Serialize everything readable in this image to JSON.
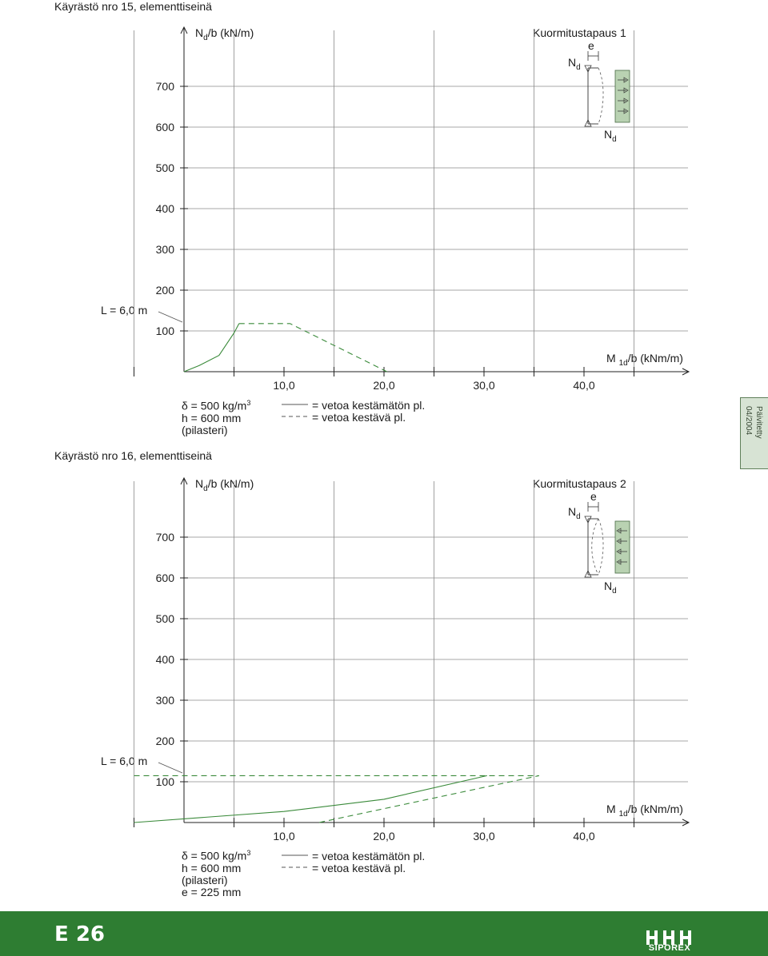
{
  "colors": {
    "curve": "#3a8a3a",
    "footer": "#2e7d32",
    "grid": "#8a8a8a",
    "panel": "#b9d2b2"
  },
  "side_tab": {
    "line1": "Päivitetty",
    "line2": "04/2004"
  },
  "footer": {
    "page_number": "E 26",
    "logo_text": "SIPOREX"
  },
  "chart_data": [
    {
      "type": "line",
      "title": "Käyrästö nro 15, elementtiseinä",
      "case_label": "Kuormitustapaus 1",
      "ylabel": {
        "main": "N",
        "sub": "d",
        "rest": "/b (kN/m)"
      },
      "xlabel": {
        "main": "M ",
        "sub": "1d",
        "rest": "/b (kNm/m)"
      },
      "yticks": [
        "100",
        "200",
        "300",
        "400",
        "500",
        "600",
        "700"
      ],
      "xticks": [
        "10,0",
        "20,0",
        "30,0",
        "40,0"
      ],
      "ylim": [
        0,
        800
      ],
      "xlim": [
        -5,
        50
      ],
      "curve_label": "L = 6,0 m",
      "diagram": {
        "e": "e",
        "nd_top": "N",
        "nd_bottom": "N",
        "sub": "d"
      },
      "params": [
        "δ = 500 kg/m",
        "h = 600 mm",
        "(pilasteri)"
      ],
      "param_sup": "3",
      "legend": [
        "= vetoa kestämätön pl.",
        "= vetoa kestävä pl."
      ],
      "series": [
        {
          "name": "vetoa kestämätön pl.",
          "style": "solid",
          "points": [
            [
              0,
              0
            ],
            [
              1.5,
              15
            ],
            [
              3.5,
              40
            ],
            [
              5,
              95
            ],
            [
              5.5,
              118
            ]
          ]
        },
        {
          "name": "vetoa kestävä pl.",
          "style": "dashed",
          "points": [
            [
              5.5,
              118
            ],
            [
              10.6,
              118
            ],
            [
              20.3,
              0
            ]
          ]
        }
      ]
    },
    {
      "type": "line",
      "title": "Käyrästö nro 16, elementtiseinä",
      "case_label": "Kuormitustapaus 2",
      "ylabel": {
        "main": "N",
        "sub": "d",
        "rest": "/b (kN/m)"
      },
      "xlabel": {
        "main": "M ",
        "sub": "1d",
        "rest": "/b (kNm/m)"
      },
      "yticks": [
        "100",
        "200",
        "300",
        "400",
        "500",
        "600",
        "700"
      ],
      "xticks": [
        "10,0",
        "20,0",
        "30,0",
        "40,0"
      ],
      "ylim": [
        0,
        800
      ],
      "xlim": [
        -5,
        50
      ],
      "curve_label": "L = 6,0 m",
      "diagram": {
        "e": "e",
        "nd_top": "N",
        "nd_bottom": "N",
        "sub": "d"
      },
      "params": [
        "δ = 500 kg/m",
        "h = 600 mm",
        "(pilasteri)",
        "e = 225 mm"
      ],
      "param_sup": "3",
      "legend": [
        "= vetoa kestämätön pl.",
        "= vetoa kestävä pl."
      ],
      "series": [
        {
          "name": "vetoa kestämätön pl.",
          "style": "solid",
          "points": [
            [
              -5,
              0
            ],
            [
              10,
              27
            ],
            [
              20,
              57
            ],
            [
              30.3,
              115
            ]
          ]
        },
        {
          "name": "vetoa kestävä pl.",
          "style": "dashed",
          "points": [
            [
              -5,
              115
            ],
            [
              35.5,
              115
            ],
            [
              13.5,
              0
            ]
          ]
        }
      ]
    }
  ]
}
